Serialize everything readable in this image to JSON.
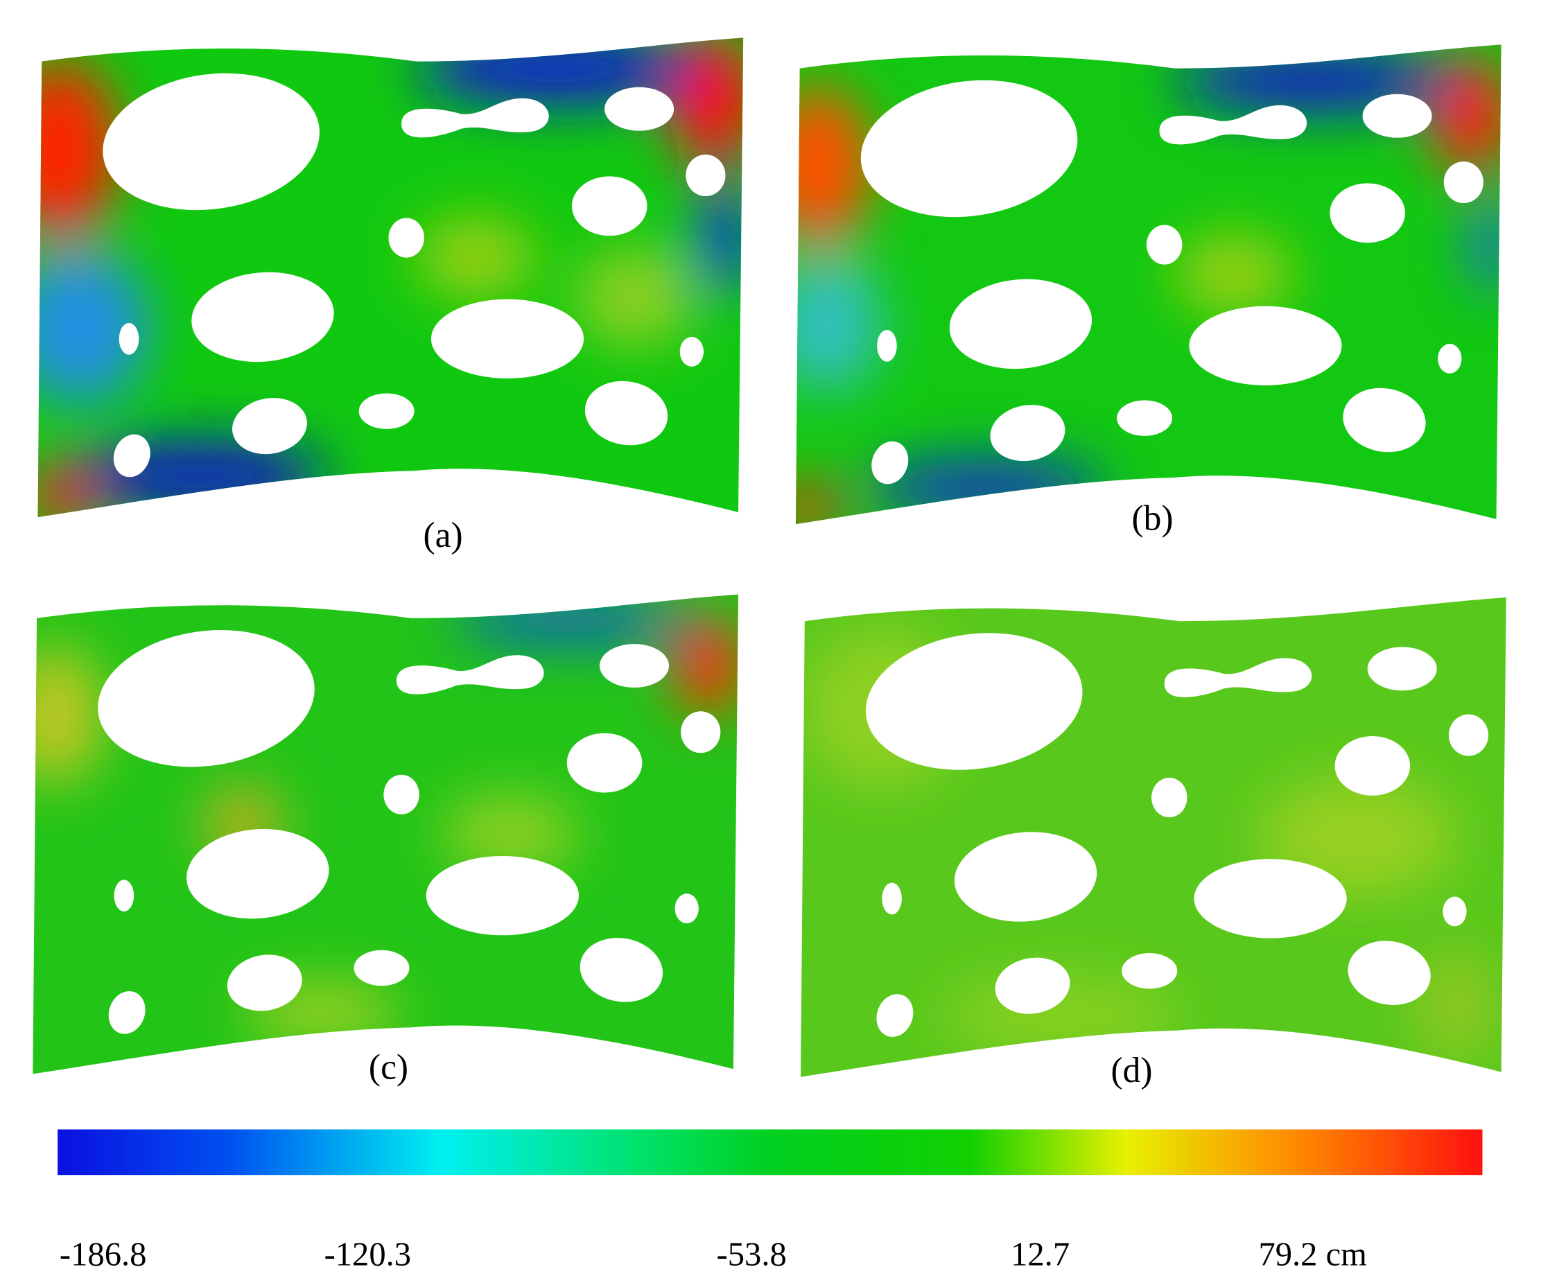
{
  "panels": [
    {
      "label": "(a)"
    },
    {
      "label": "(b)"
    },
    {
      "label": "(c)"
    },
    {
      "label": "(d)"
    }
  ],
  "colorbar": {
    "ticks": [
      "-186.8",
      "-120.3",
      "-53.8",
      "12.7",
      "79.2 cm"
    ]
  }
}
